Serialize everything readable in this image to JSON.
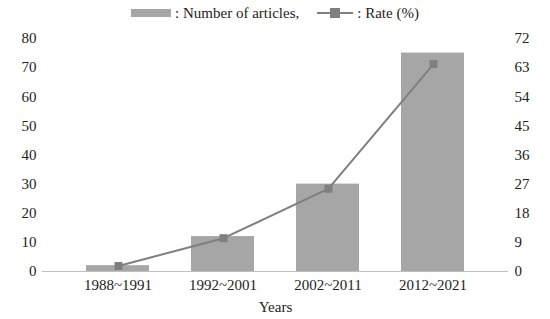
{
  "chart_data": {
    "type": "bar",
    "x_label": "Years",
    "categories": [
      "1988~1991",
      "1992~2001",
      "2002~2011",
      "2012~2021"
    ],
    "series": [
      {
        "name": ": Number of articles,",
        "type": "bar",
        "color": "#a6a6a6",
        "values": [
          2,
          12,
          30,
          75
        ]
      },
      {
        "name": ": Rate (%)",
        "type": "line",
        "color": "#7f7f7f",
        "marker": "square",
        "axis": "y2",
        "values": [
          1.7,
          10.3,
          25.6,
          64.1
        ]
      }
    ],
    "ylim": [
      0,
      80
    ],
    "yticks": [
      0,
      10,
      20,
      30,
      40,
      50,
      60,
      70,
      80
    ],
    "y2lim": [
      0,
      72
    ],
    "y2ticks": [
      0,
      9,
      18,
      27,
      36,
      45,
      54,
      63,
      72
    ],
    "legend": "top",
    "grid": false
  }
}
